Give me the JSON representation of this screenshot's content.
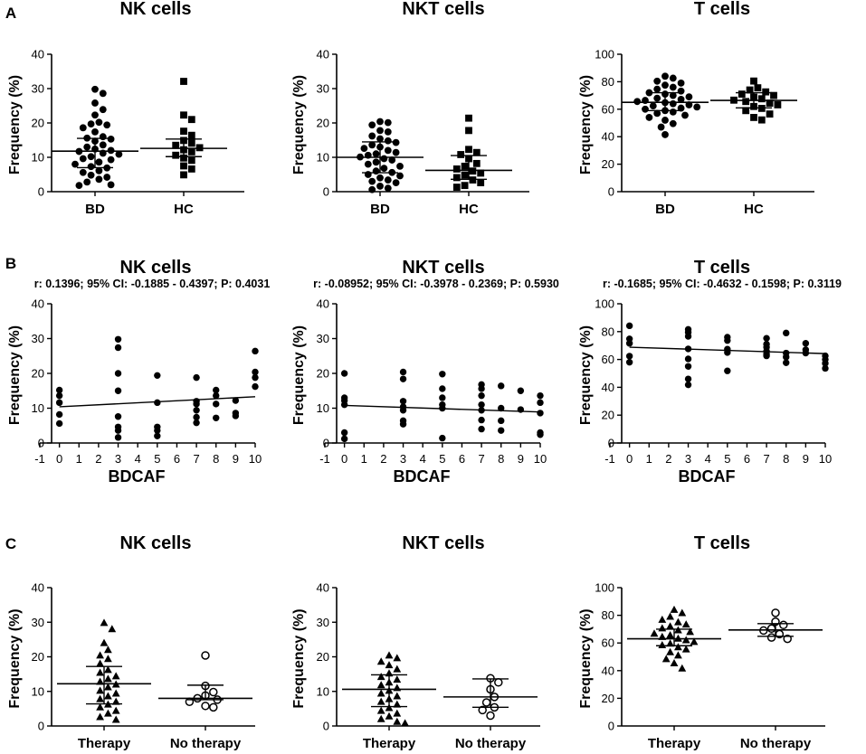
{
  "figure": {
    "panel_labels": [
      "A",
      "B",
      "C"
    ],
    "y_axis_label": "Frequency (%)",
    "colors": {
      "ink": "#000000",
      "background": "#ffffff"
    }
  },
  "chart_data": [
    {
      "panel": "A",
      "type": "scatter",
      "title": "NK cells",
      "ylabel": "Frequency (%)",
      "ylim": [
        0,
        40
      ],
      "yticks": [
        0,
        10,
        20,
        30,
        40
      ],
      "categories": [
        "BD",
        "HC"
      ],
      "series": [
        {
          "name": "BD",
          "marker": "circle",
          "median": 11.8,
          "iqr": [
            7.0,
            15.5
          ],
          "values": [
            29.8,
            28.6,
            25.8,
            23.9,
            22.3,
            20.2,
            19.7,
            19.4,
            18.6,
            17.4,
            16.0,
            15.6,
            15.3,
            14.7,
            13.6,
            13.0,
            12.4,
            12.0,
            11.7,
            11.2,
            10.9,
            10.2,
            9.6,
            9.3,
            8.6,
            8.0,
            7.3,
            6.9,
            6.1,
            5.6,
            4.8,
            4.2,
            3.6,
            2.8,
            2.0,
            1.8
          ]
        },
        {
          "name": "HC",
          "marker": "square",
          "median": 12.6,
          "iqr": [
            10.2,
            15.3
          ],
          "values": [
            32.1,
            22.3,
            21.0,
            17.6,
            16.4,
            14.9,
            14.1,
            13.5,
            12.8,
            12.2,
            11.6,
            10.6,
            9.8,
            9.1,
            7.5,
            6.6,
            4.9
          ]
        }
      ]
    },
    {
      "panel": "A",
      "type": "scatter",
      "title": "NKT cells",
      "ylabel": "Frequency (%)",
      "ylim": [
        0,
        40
      ],
      "yticks": [
        0,
        10,
        20,
        30,
        40
      ],
      "categories": [
        "BD",
        "HC"
      ],
      "series": [
        {
          "name": "BD",
          "marker": "circle",
          "median": 10.0,
          "iqr": [
            5.5,
            14.5
          ],
          "values": [
            20.4,
            20.1,
            19.4,
            17.8,
            17.4,
            16.2,
            15.4,
            14.8,
            14.3,
            13.6,
            13.0,
            12.6,
            12.0,
            11.4,
            11.0,
            10.6,
            10.1,
            9.6,
            9.2,
            8.6,
            8.0,
            7.4,
            6.8,
            6.0,
            5.6,
            5.0,
            4.6,
            4.0,
            3.4,
            3.0,
            2.6,
            1.6,
            1.0,
            0.6
          ]
        },
        {
          "name": "HC",
          "marker": "square",
          "median": 6.2,
          "iqr": [
            3.6,
            10.5
          ],
          "values": [
            21.4,
            17.8,
            12.3,
            11.4,
            10.8,
            9.6,
            8.2,
            7.4,
            6.6,
            6.0,
            5.4,
            4.8,
            4.1,
            3.4,
            2.6,
            1.8,
            1.3
          ]
        }
      ]
    },
    {
      "panel": "A",
      "type": "scatter",
      "title": "T cells",
      "ylabel": "Frequency (%)",
      "ylim": [
        0,
        100
      ],
      "yticks": [
        0,
        20,
        40,
        60,
        80,
        100
      ],
      "categories": [
        "BD",
        "HC"
      ],
      "series": [
        {
          "name": "BD",
          "marker": "circle",
          "median": 65.0,
          "iqr": [
            59.0,
            72.0
          ],
          "values": [
            84.0,
            82.6,
            80.4,
            79.0,
            77.5,
            76.0,
            74.6,
            73.2,
            72.0,
            71.0,
            70.0,
            69.0,
            68.0,
            67.2,
            66.4,
            65.6,
            64.8,
            64.0,
            63.2,
            62.4,
            61.6,
            60.8,
            60.0,
            59.0,
            58.0,
            57.0,
            55.6,
            54.0,
            52.0,
            49.5,
            47.0,
            41.5
          ]
        },
        {
          "name": "HC",
          "marker": "square",
          "median": 66.4,
          "iqr": [
            61.0,
            72.0
          ],
          "values": [
            80.5,
            75.6,
            74.0,
            72.6,
            71.0,
            70.0,
            68.8,
            67.6,
            66.6,
            65.6,
            64.4,
            63.2,
            62.0,
            60.6,
            59.0,
            56.5,
            54.0,
            52.2
          ]
        }
      ]
    },
    {
      "panel": "B",
      "type": "scatter",
      "title": "NK cells",
      "stats": "r: 0.1396; 95% CI: -0.1885 - 0.4397; P: 0.4031",
      "xlabel": "BDCAF",
      "ylabel": "Frequency (%)",
      "xlim": [
        -1,
        10
      ],
      "xticks": [
        -1,
        0,
        1,
        2,
        3,
        4,
        5,
        6,
        7,
        8,
        9,
        10
      ],
      "ylim": [
        0,
        40
      ],
      "yticks": [
        0,
        10,
        20,
        30,
        40
      ],
      "fit_line": [
        [
          0,
          10.4
        ],
        [
          10,
          13.3
        ]
      ],
      "points": [
        [
          0,
          15.2
        ],
        [
          0,
          13.6
        ],
        [
          0,
          11.6
        ],
        [
          0,
          8.2
        ],
        [
          0,
          5.6
        ],
        [
          3,
          29.8
        ],
        [
          3,
          27.4
        ],
        [
          3,
          20.0
        ],
        [
          3,
          15.0
        ],
        [
          3,
          7.6
        ],
        [
          3,
          4.6
        ],
        [
          3,
          3.6
        ],
        [
          3,
          1.6
        ],
        [
          5,
          19.4
        ],
        [
          5,
          11.6
        ],
        [
          5,
          4.6
        ],
        [
          5,
          3.6
        ],
        [
          5,
          2.0
        ],
        [
          7,
          18.8
        ],
        [
          7,
          12.0
        ],
        [
          7,
          11.2
        ],
        [
          7,
          9.4
        ],
        [
          7,
          7.4
        ],
        [
          7,
          5.8
        ],
        [
          8,
          15.2
        ],
        [
          8,
          13.6
        ],
        [
          8,
          11.2
        ],
        [
          8,
          7.2
        ],
        [
          9,
          12.2
        ],
        [
          9,
          8.6
        ],
        [
          9,
          7.8
        ],
        [
          10,
          26.4
        ],
        [
          10,
          20.4
        ],
        [
          10,
          18.8
        ],
        [
          10,
          16.2
        ]
      ]
    },
    {
      "panel": "B",
      "type": "scatter",
      "title": "NKT cells",
      "stats": "r: -0.08952; 95% CI: -0.3978 - 0.2369; P: 0.5930",
      "xlabel": "BDCAF",
      "ylabel": "Frequency (%)",
      "xlim": [
        -1,
        10
      ],
      "xticks": [
        -1,
        0,
        1,
        2,
        3,
        4,
        5,
        6,
        7,
        8,
        9,
        10
      ],
      "ylim": [
        0,
        40
      ],
      "yticks": [
        0,
        10,
        20,
        30,
        40
      ],
      "fit_line": [
        [
          0,
          10.8
        ],
        [
          10,
          8.9
        ]
      ],
      "points": [
        [
          0,
          20.0
        ],
        [
          0,
          13.0
        ],
        [
          0,
          12.2
        ],
        [
          0,
          11.0
        ],
        [
          0,
          3.0
        ],
        [
          0,
          1.2
        ],
        [
          3,
          20.4
        ],
        [
          3,
          18.4
        ],
        [
          3,
          12.0
        ],
        [
          3,
          10.4
        ],
        [
          3,
          9.4
        ],
        [
          3,
          6.4
        ],
        [
          3,
          5.4
        ],
        [
          5,
          19.8
        ],
        [
          5,
          15.6
        ],
        [
          5,
          13.0
        ],
        [
          5,
          11.0
        ],
        [
          5,
          10.0
        ],
        [
          5,
          1.4
        ],
        [
          7,
          16.8
        ],
        [
          7,
          15.6
        ],
        [
          7,
          13.6
        ],
        [
          7,
          11.0
        ],
        [
          7,
          9.4
        ],
        [
          7,
          6.6
        ],
        [
          7,
          4.0
        ],
        [
          8,
          16.4
        ],
        [
          8,
          10.0
        ],
        [
          8,
          6.4
        ],
        [
          8,
          3.6
        ],
        [
          9,
          15.0
        ],
        [
          9,
          9.6
        ],
        [
          10,
          13.6
        ],
        [
          10,
          11.6
        ],
        [
          10,
          8.6
        ],
        [
          10,
          3.0
        ],
        [
          10,
          2.4
        ]
      ]
    },
    {
      "panel": "B",
      "type": "scatter",
      "title": "T cells",
      "stats": "r: -0.1685; 95% CI: -0.4632 - 0.1598; P: 0.3119",
      "xlabel": "BDCAF",
      "ylabel": "Frequency (%)",
      "xlim": [
        -1,
        10
      ],
      "xticks": [
        -1,
        0,
        1,
        2,
        3,
        4,
        5,
        6,
        7,
        8,
        9,
        10
      ],
      "ylim": [
        0,
        100
      ],
      "yticks": [
        0,
        20,
        40,
        60,
        80,
        100
      ],
      "fit_line": [
        [
          0,
          68.8
        ],
        [
          10,
          64.2
        ]
      ],
      "points": [
        [
          0,
          84.2
        ],
        [
          0,
          74.8
        ],
        [
          0,
          71.6
        ],
        [
          0,
          62.4
        ],
        [
          0,
          58.0
        ],
        [
          3,
          81.6
        ],
        [
          3,
          79.4
        ],
        [
          3,
          76.6
        ],
        [
          3,
          67.6
        ],
        [
          3,
          60.4
        ],
        [
          3,
          55.0
        ],
        [
          3,
          46.0
        ],
        [
          3,
          41.8
        ],
        [
          5,
          76.0
        ],
        [
          5,
          73.6
        ],
        [
          5,
          67.4
        ],
        [
          5,
          65.0
        ],
        [
          5,
          51.8
        ],
        [
          7,
          75.2
        ],
        [
          7,
          71.0
        ],
        [
          7,
          68.8
        ],
        [
          7,
          66.0
        ],
        [
          7,
          63.8
        ],
        [
          7,
          62.6
        ],
        [
          8,
          79.0
        ],
        [
          8,
          64.6
        ],
        [
          8,
          61.8
        ],
        [
          8,
          57.6
        ],
        [
          9,
          71.6
        ],
        [
          9,
          67.0
        ],
        [
          9,
          64.6
        ],
        [
          10,
          62.6
        ],
        [
          10,
          60.0
        ],
        [
          10,
          57.2
        ],
        [
          10,
          53.6
        ]
      ]
    },
    {
      "panel": "C",
      "type": "scatter",
      "title": "NK cells",
      "ylabel": "Frequency (%)",
      "ylim": [
        0,
        40
      ],
      "yticks": [
        0,
        10,
        20,
        30,
        40
      ],
      "categories": [
        "Therapy",
        "No therapy"
      ],
      "series": [
        {
          "name": "Therapy",
          "marker": "triangle",
          "median": 12.2,
          "iqr": [
            6.4,
            17.2
          ],
          "values": [
            29.8,
            28.0,
            24.0,
            22.0,
            20.4,
            19.4,
            18.0,
            16.2,
            15.4,
            14.4,
            13.6,
            12.8,
            12.0,
            11.2,
            10.2,
            9.4,
            8.6,
            7.8,
            7.0,
            6.2,
            5.4,
            4.4,
            3.6,
            2.6,
            1.8
          ]
        },
        {
          "name": "No therapy",
          "marker": "open-circle",
          "median": 8.0,
          "iqr": [
            7.6,
            11.8
          ],
          "values": [
            20.4,
            11.6,
            9.8,
            8.8,
            8.0,
            7.6,
            7.0,
            5.8,
            5.4
          ]
        }
      ]
    },
    {
      "panel": "C",
      "type": "scatter",
      "title": "NKT cells",
      "ylabel": "Frequency (%)",
      "ylim": [
        0,
        40
      ],
      "yticks": [
        0,
        10,
        20,
        30,
        40
      ],
      "categories": [
        "Therapy",
        "No therapy"
      ],
      "series": [
        {
          "name": "Therapy",
          "marker": "triangle",
          "median": 10.6,
          "iqr": [
            5.6,
            14.8
          ],
          "values": [
            20.4,
            19.6,
            18.6,
            17.6,
            16.4,
            15.2,
            14.2,
            13.4,
            12.6,
            11.8,
            11.0,
            10.2,
            9.4,
            8.6,
            7.8,
            7.0,
            6.2,
            5.2,
            4.4,
            3.6,
            2.8,
            2.0,
            1.2,
            0.8
          ]
        },
        {
          "name": "No therapy",
          "marker": "open-circle",
          "median": 8.4,
          "iqr": [
            5.4,
            13.6
          ],
          "values": [
            13.8,
            12.6,
            10.6,
            8.4,
            6.8,
            5.4,
            4.6,
            3.0
          ]
        }
      ]
    },
    {
      "panel": "C",
      "type": "scatter",
      "title": "T cells",
      "ylabel": "Frequency (%)",
      "ylim": [
        0,
        100
      ],
      "yticks": [
        0,
        20,
        40,
        60,
        80,
        100
      ],
      "categories": [
        "Therapy",
        "No therapy"
      ],
      "series": [
        {
          "name": "Therapy",
          "marker": "triangle",
          "median": 63.0,
          "iqr": [
            58.0,
            70.0
          ],
          "values": [
            84.0,
            81.6,
            79.0,
            76.8,
            75.0,
            73.4,
            72.0,
            70.6,
            69.2,
            68.0,
            66.8,
            65.6,
            64.4,
            63.2,
            62.0,
            60.8,
            59.6,
            58.4,
            57.0,
            55.4,
            53.4,
            51.0,
            48.4,
            45.4,
            41.6
          ]
        },
        {
          "name": "No therapy",
          "marker": "open-circle",
          "median": 69.4,
          "iqr": [
            64.8,
            74.0
          ],
          "values": [
            81.8,
            75.4,
            73.0,
            70.4,
            69.0,
            66.4,
            64.0,
            63.0
          ]
        }
      ]
    }
  ]
}
